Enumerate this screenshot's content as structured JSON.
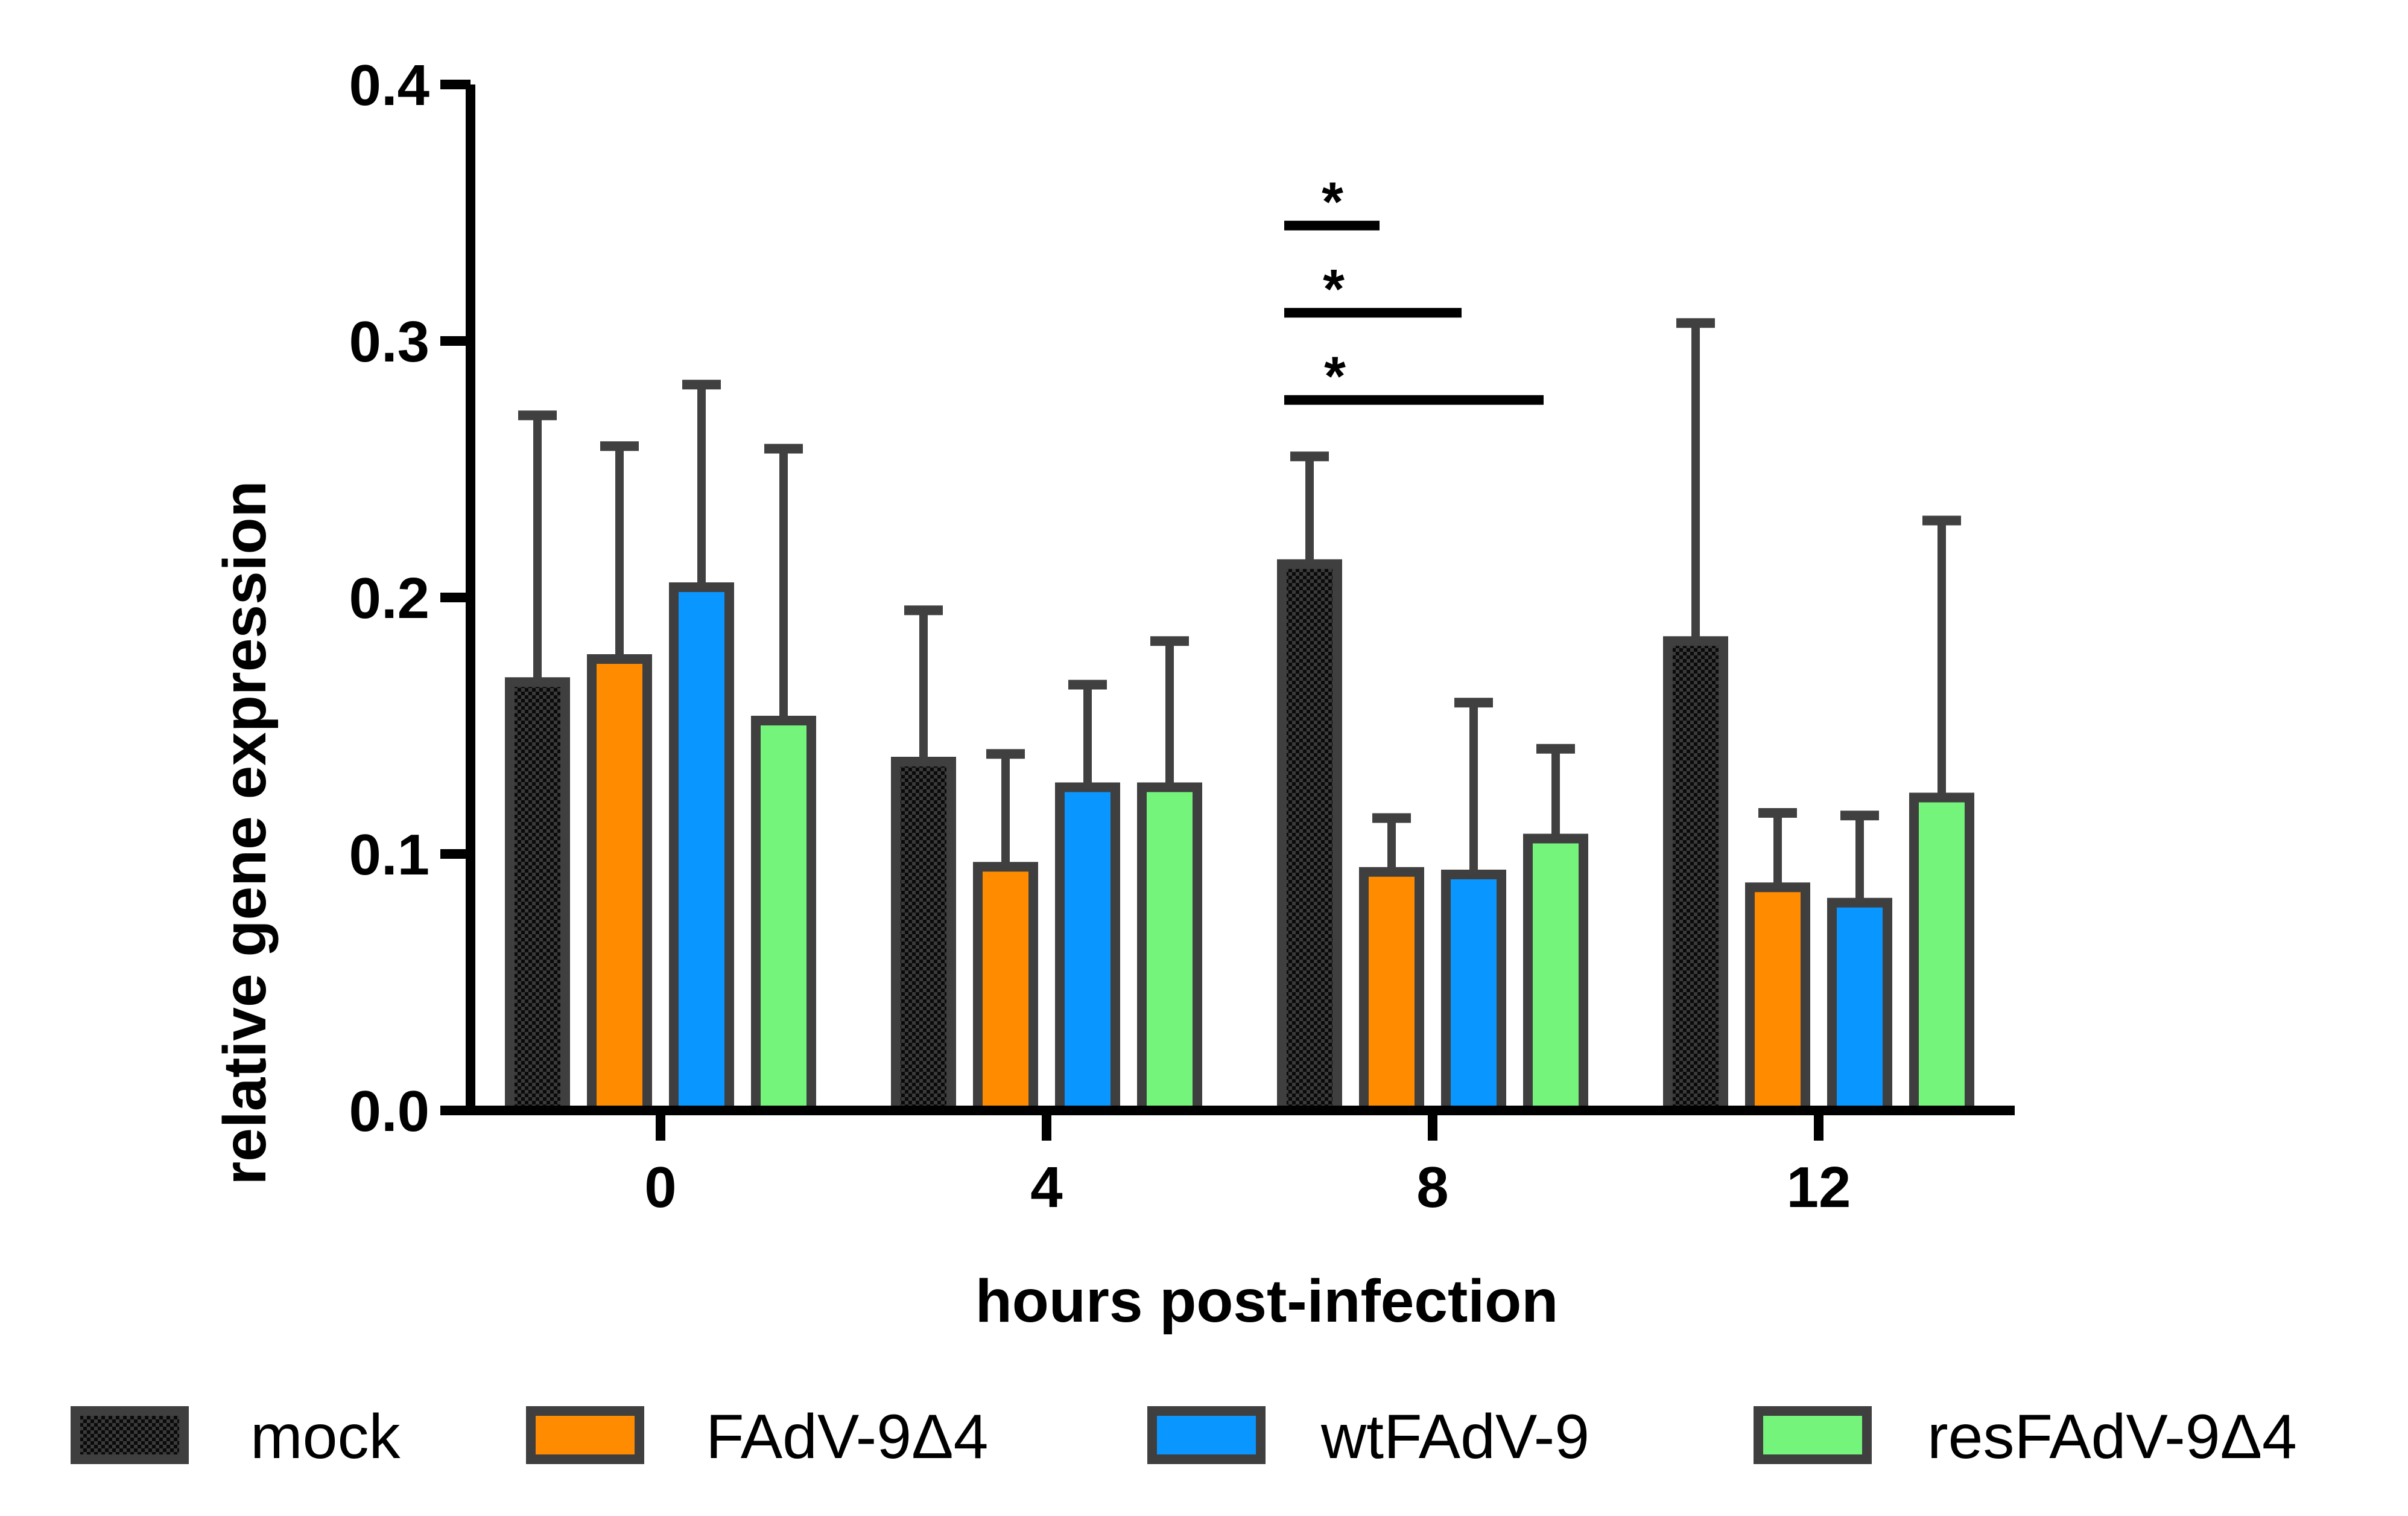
{
  "chart_data": {
    "type": "bar",
    "title": "",
    "xlabel": "hours post-infection",
    "ylabel": "relative gene expression",
    "categories": [
      "0",
      "4",
      "8",
      "12"
    ],
    "ylim": [
      0.0,
      0.4
    ],
    "yticks": [
      "0.0",
      "0.1",
      "0.2",
      "0.3",
      "0.4"
    ],
    "grid": false,
    "legend_position": "bottom",
    "series": [
      {
        "name": "mock",
        "color": "#1c1c1c",
        "pattern": "checker",
        "values": [
          0.167,
          0.136,
          0.213,
          0.183
        ],
        "errors": [
          0.104,
          0.059,
          0.042,
          0.124
        ]
      },
      {
        "name": "FAdV-9Δ4",
        "color": "#ff8c00",
        "values": [
          0.176,
          0.095,
          0.093,
          0.087
        ],
        "errors": [
          0.083,
          0.044,
          0.021,
          0.029
        ]
      },
      {
        "name": "wtFAdV-9",
        "color": "#0a96ff",
        "values": [
          0.204,
          0.126,
          0.092,
          0.081
        ],
        "errors": [
          0.079,
          0.04,
          0.067,
          0.034
        ]
      },
      {
        "name": "resFAdV-9Δ4",
        "color": "#74f47a",
        "values": [
          0.152,
          0.126,
          0.106,
          0.122
        ],
        "errors": [
          0.106,
          0.057,
          0.035,
          0.108
        ]
      }
    ],
    "significance": [
      {
        "category": "8",
        "from": "mock",
        "to": "FAdV-9Δ4",
        "label": "*"
      },
      {
        "category": "8",
        "from": "mock",
        "to": "wtFAdV-9",
        "label": "*"
      },
      {
        "category": "8",
        "from": "mock",
        "to": "resFAdV-9Δ4",
        "label": "*"
      }
    ]
  }
}
